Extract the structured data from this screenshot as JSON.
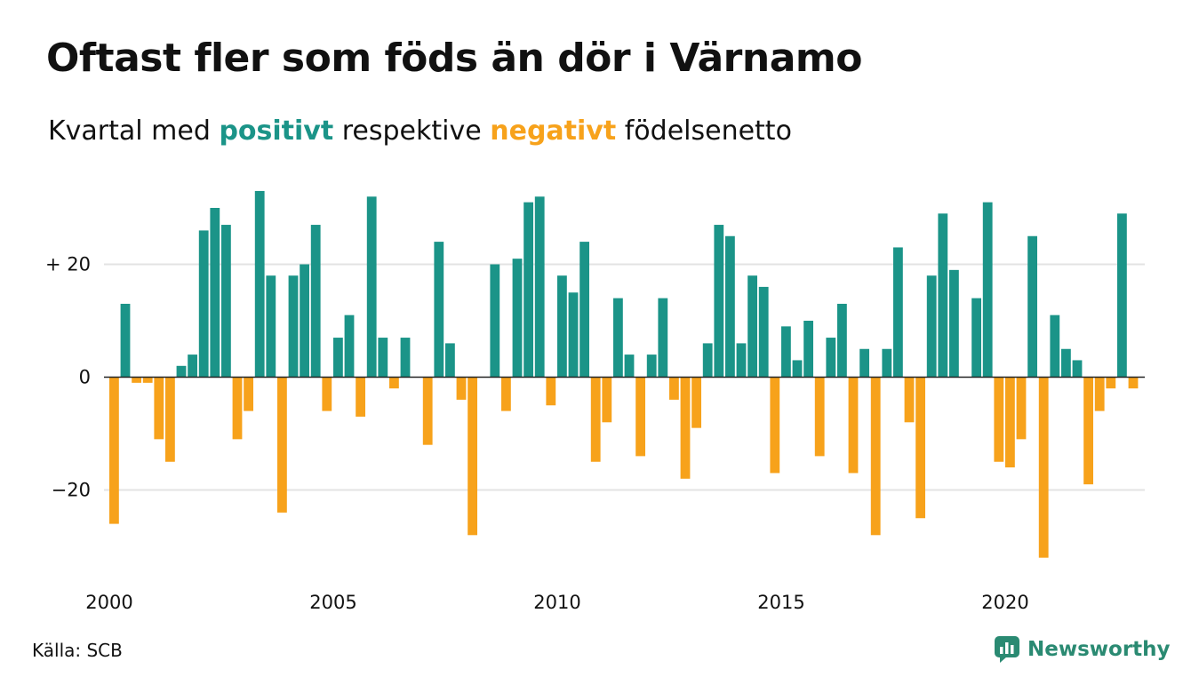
{
  "header": {
    "title": "Oftast fler som föds än dör i Värnamo",
    "subtitle_pre": "Kvartal med",
    "subtitle_positive": "positivt",
    "subtitle_mid": "respektive",
    "subtitle_negative": "negativt",
    "subtitle_post": "födelsenetto"
  },
  "footer": {
    "source": "Källa: SCB",
    "brand": "Newsworthy"
  },
  "colors": {
    "positive": "#1b9488",
    "negative": "#f7a21b",
    "grid": "#e3e3e3",
    "brand": "#2a8a72"
  },
  "icons": {
    "brand_logo": "newsworthy-logo-icon"
  },
  "chart_data": {
    "type": "bar",
    "title": "Oftast fler som föds än dör i Värnamo",
    "subtitle": "Kvartal med positivt respektive negativt födelsenetto",
    "x_start": "2000 Q1",
    "frequency": "quarterly",
    "ylim": [
      -36,
      36
    ],
    "y_ticks": [
      {
        "value": 20,
        "label": "+ 20"
      },
      {
        "value": 0,
        "label": "0"
      },
      {
        "value": -20,
        "label": "−20"
      }
    ],
    "x_ticks": [
      {
        "year": 2000,
        "label": "2000"
      },
      {
        "year": 2005,
        "label": "2005"
      },
      {
        "year": 2010,
        "label": "2010"
      },
      {
        "year": 2015,
        "label": "2015"
      },
      {
        "year": 2020,
        "label": "2020"
      }
    ],
    "grid": true,
    "values": [
      -26,
      13,
      -1,
      -1,
      -11,
      -15,
      2,
      4,
      26,
      30,
      27,
      -11,
      -6,
      33,
      18,
      -24,
      18,
      20,
      27,
      -6,
      7,
      11,
      -7,
      32,
      7,
      -2,
      7,
      0,
      -12,
      24,
      6,
      -4,
      -28,
      0,
      20,
      -6,
      21,
      31,
      32,
      -5,
      18,
      15,
      24,
      -15,
      -8,
      14,
      4,
      -14,
      4,
      14,
      -4,
      -18,
      -9,
      6,
      27,
      25,
      6,
      18,
      16,
      -17,
      9,
      3,
      10,
      -14,
      7,
      13,
      -17,
      5,
      -28,
      5,
      23,
      -8,
      -25,
      18,
      29,
      19,
      0,
      14,
      31,
      -15,
      -16,
      -11,
      25,
      -32,
      11,
      5,
      3,
      -19,
      -6,
      -2,
      29,
      -2
    ]
  }
}
